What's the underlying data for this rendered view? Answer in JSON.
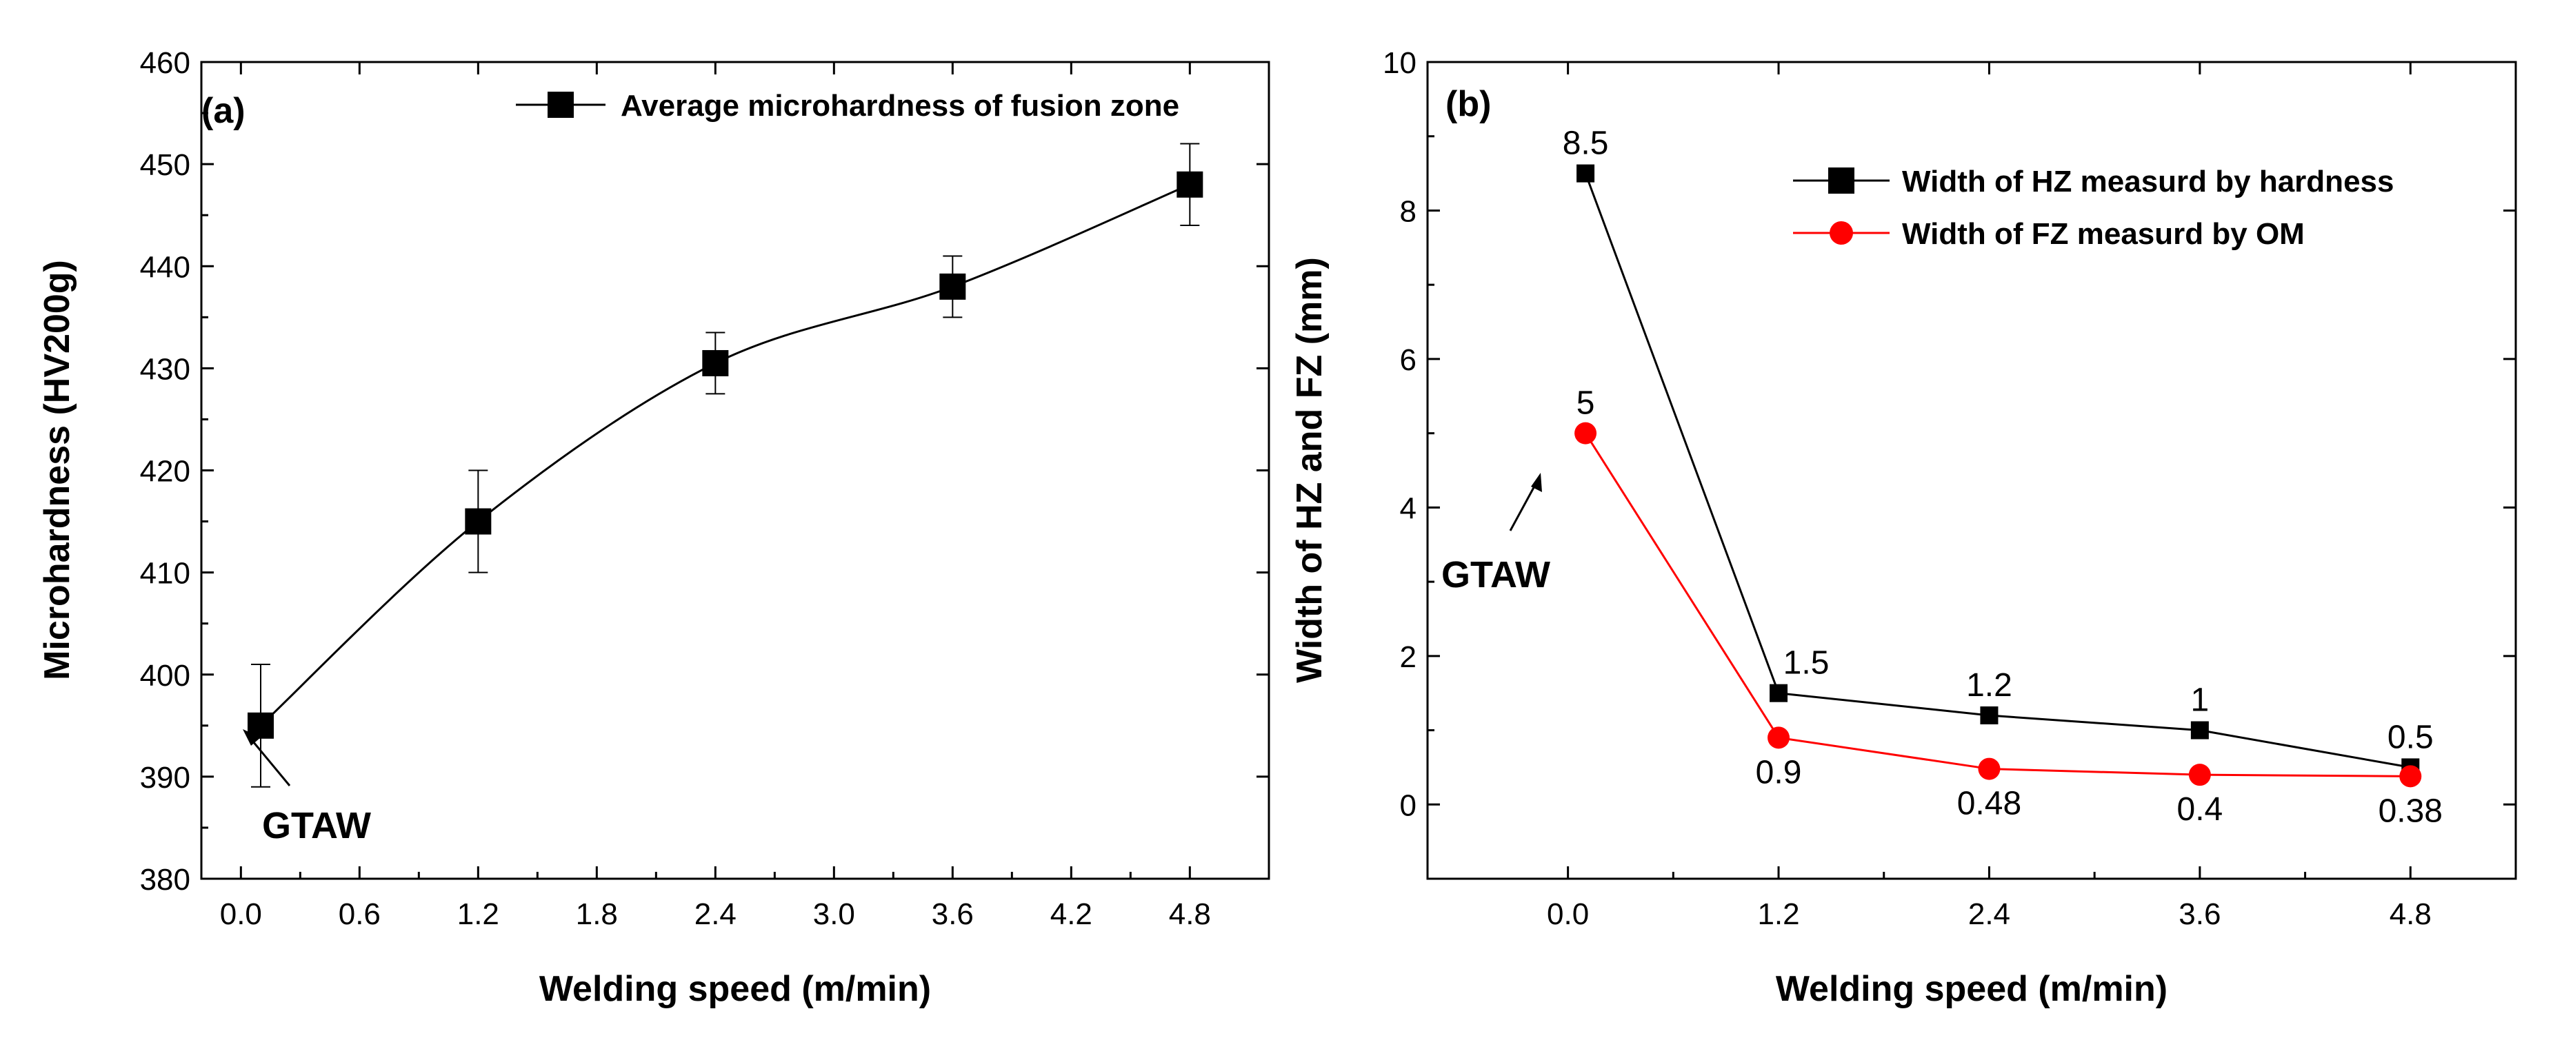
{
  "chart_data": [
    {
      "type": "line",
      "panel": "(a)",
      "xlabel": "Welding speed (m/min)",
      "ylabel": "Microhardness (HV200g)",
      "xlim": [
        -0.2,
        5.2
      ],
      "ylim": [
        380,
        460
      ],
      "xticks": [
        "0.0",
        "0.6",
        "1.2",
        "1.8",
        "2.4",
        "3.0",
        "3.6",
        "4.2",
        "4.8"
      ],
      "xtick_values": [
        0.0,
        0.6,
        1.2,
        1.8,
        2.4,
        3.0,
        3.6,
        4.2,
        4.8
      ],
      "yticks": [
        "380",
        "390",
        "400",
        "410",
        "420",
        "430",
        "440",
        "450",
        "460"
      ],
      "ytick_values": [
        380,
        390,
        400,
        410,
        420,
        430,
        440,
        450,
        460
      ],
      "series": [
        {
          "name": "Average microhardness of fusion zone",
          "color": "#000000",
          "marker": "square",
          "x": [
            0.1,
            1.2,
            2.4,
            3.6,
            4.8
          ],
          "y": [
            395,
            415,
            430.5,
            438,
            448
          ],
          "err_low": [
            389,
            410,
            427.5,
            435,
            444
          ],
          "err_high": [
            401,
            420,
            433.5,
            441,
            452
          ]
        }
      ],
      "legend_position": "top-right",
      "annotation": {
        "text": "GTAW",
        "points_to": [
          0.1,
          395
        ]
      }
    },
    {
      "type": "line",
      "panel": "(b)",
      "xlabel": "Welding speed (m/min)",
      "ylabel": "Width of HZ and FZ (mm)",
      "xlim": [
        -0.8,
        5.4
      ],
      "ylim": [
        -1,
        10
      ],
      "xticks": [
        "0.0",
        "1.2",
        "2.4",
        "3.6",
        "4.8"
      ],
      "xtick_values": [
        0.0,
        1.2,
        2.4,
        3.6,
        4.8
      ],
      "yticks": [
        "0",
        "2",
        "4",
        "6",
        "8",
        "10"
      ],
      "ytick_values": [
        0,
        2,
        4,
        6,
        8,
        10
      ],
      "series": [
        {
          "name": "Width of HZ measurd by hardness",
          "color": "#000000",
          "marker": "square",
          "x": [
            0.1,
            1.2,
            2.4,
            3.6,
            4.8
          ],
          "y": [
            8.5,
            1.5,
            1.2,
            1.0,
            0.5
          ],
          "labels": [
            "8.5",
            "1.5",
            "1.2",
            "1",
            "0.5"
          ]
        },
        {
          "name": "Width of FZ measurd by OM",
          "color": "#ff0000",
          "marker": "circle",
          "x": [
            0.1,
            1.2,
            2.4,
            3.6,
            4.8
          ],
          "y": [
            5.0,
            0.9,
            0.48,
            0.4,
            0.38
          ],
          "labels": [
            "5",
            "0.9",
            "0.48",
            "0.4",
            "0.38"
          ]
        }
      ],
      "legend_position": "top-right",
      "annotation": {
        "text": "GTAW",
        "points_to": [
          0.1,
          5.0
        ]
      }
    }
  ]
}
